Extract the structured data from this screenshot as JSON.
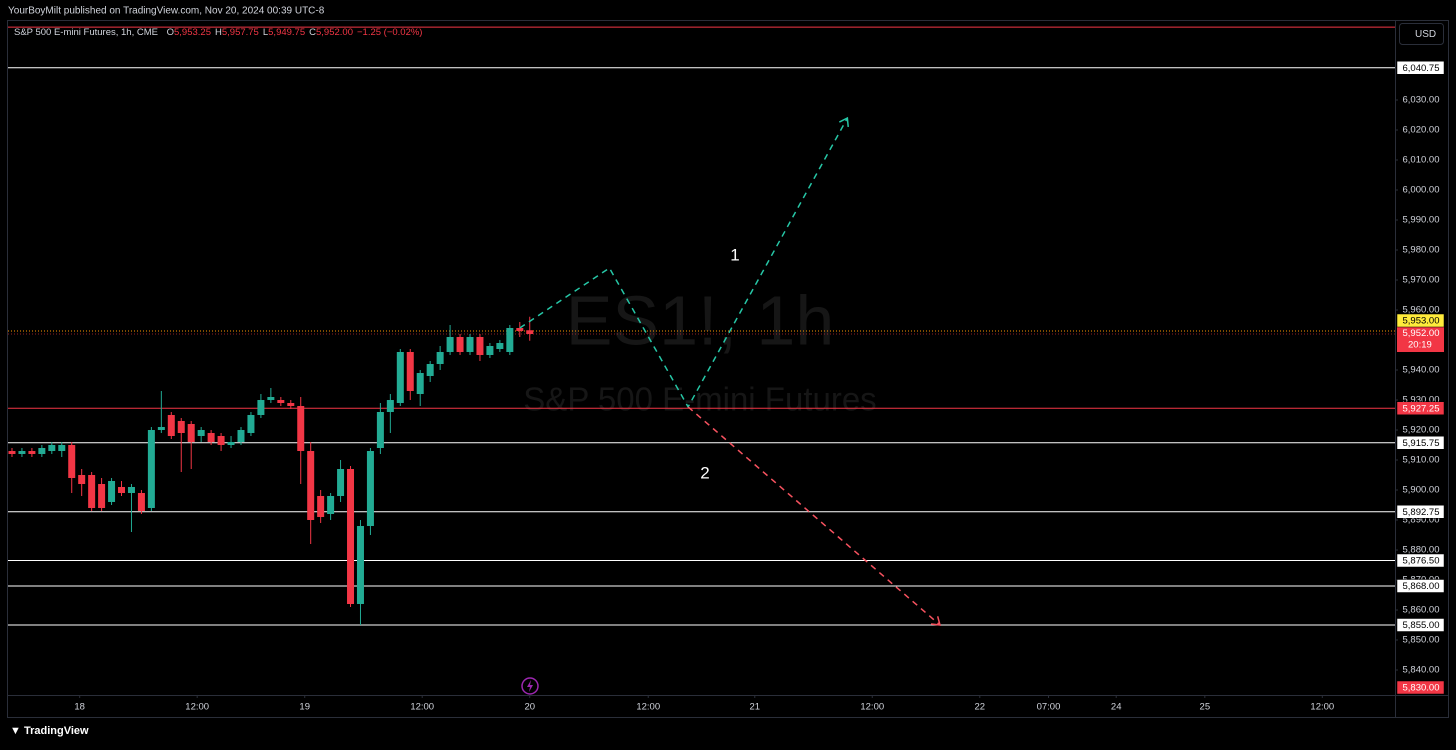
{
  "chart_data": {
    "type": "candlestick",
    "publisher_line": "YourBoyMilt published on TradingView.com, Nov 20, 2024 00:39 UTC-8",
    "symbol": "S&P 500 E-mini Futures, 1h, CME",
    "ohlc_header": [
      {
        "key": "O",
        "value": "5,953.25"
      },
      {
        "key": "H",
        "value": "5,957.75"
      },
      {
        "key": "L",
        "value": "5,949.75"
      },
      {
        "key": "C",
        "value": "5,952.00"
      }
    ],
    "change": "−1.25 (−0.02%)",
    "watermark": "ES1!, 1h",
    "watermark_subtitle": "S&P 500 E-mini Futures",
    "currency": "USD",
    "footer": "TradingView",
    "up_color": "#22ab94",
    "down_color": "#f23645",
    "open": [
      5913,
      5912,
      5913,
      5912,
      5913,
      5913,
      5915,
      5905,
      5905,
      5902,
      5896,
      5901,
      5899,
      5899,
      5894,
      5920,
      5925,
      5923,
      5922,
      5918,
      5919,
      5918,
      5915,
      5916,
      5919,
      5925,
      5930,
      5930,
      5929,
      5928,
      5913,
      5898,
      5892,
      5898,
      5907,
      5862,
      5888,
      5914,
      5926,
      5929,
      5946,
      5932,
      5938,
      5942,
      5946,
      5951,
      5946,
      5951,
      5945,
      5947,
      5946,
      5954,
      5953.25
    ],
    "high": [
      5914,
      5914,
      5914,
      5915,
      5916,
      5916,
      5916,
      5907,
      5906,
      5904,
      5904,
      5903,
      5902,
      5900,
      5921,
      5933,
      5926,
      5924,
      5923,
      5921,
      5920,
      5919,
      5918,
      5921,
      5926,
      5932,
      5934,
      5931,
      5930,
      5931,
      5916,
      5900,
      5899,
      5910,
      5908,
      5890,
      5914,
      5929,
      5932,
      5947,
      5947,
      5940,
      5943,
      5948,
      5955,
      5952,
      5952,
      5952,
      5949,
      5950,
      5955,
      5956,
      5957.75
    ],
    "low": [
      5911,
      5911,
      5911,
      5911,
      5912,
      5911,
      5899,
      5898,
      5893,
      5893,
      5895,
      5898,
      5886,
      5892,
      5893,
      5919,
      5917,
      5906,
      5907,
      5916,
      5915,
      5913,
      5914,
      5915,
      5918,
      5924,
      5929,
      5928,
      5927,
      5902,
      5882,
      5889,
      5890,
      5896,
      5861,
      5855,
      5885,
      5912,
      5919,
      5928,
      5930,
      5928,
      5936,
      5940,
      5945,
      5945,
      5945,
      5943,
      5944,
      5946,
      5945,
      5951,
      5949.75
    ],
    "close": [
      5912,
      5913,
      5912,
      5914,
      5915,
      5915,
      5904,
      5902,
      5894,
      5894,
      5903,
      5899,
      5901,
      5893,
      5920,
      5921,
      5918,
      5919,
      5916,
      5920,
      5916,
      5915,
      5916,
      5920,
      5925,
      5930,
      5931,
      5929,
      5928,
      5913,
      5890,
      5891,
      5898,
      5907,
      5862,
      5888,
      5913,
      5926,
      5930,
      5946,
      5933,
      5939,
      5942,
      5946,
      5951,
      5946,
      5951,
      5945,
      5948,
      5949,
      5954,
      5953,
      5952
    ],
    "xlim": [
      -0.4,
      138.9
    ],
    "xticks": [
      {
        "value": 6.8,
        "label": "18"
      },
      {
        "value": 18.6,
        "label": "12:00"
      },
      {
        "value": 29.4,
        "label": "19"
      },
      {
        "value": 41.2,
        "label": "12:00"
      },
      {
        "value": 52.0,
        "label": "20"
      },
      {
        "value": 63.9,
        "label": "12:00"
      },
      {
        "value": 74.6,
        "label": "21"
      },
      {
        "value": 86.4,
        "label": "12:00"
      },
      {
        "value": 97.2,
        "label": "22"
      },
      {
        "value": 104.1,
        "label": "07:00"
      },
      {
        "value": 110.9,
        "label": "24"
      },
      {
        "value": 119.8,
        "label": "25"
      },
      {
        "value": 131.6,
        "label": "12:00"
      }
    ],
    "ylim": [
      5832,
      6056
    ],
    "yticks": [
      {
        "value": 6030,
        "label": "6,030.00"
      },
      {
        "value": 6020,
        "label": "6,020.00"
      },
      {
        "value": 6010,
        "label": "6,010.00"
      },
      {
        "value": 6000,
        "label": "6,000.00"
      },
      {
        "value": 5990,
        "label": "5,990.00"
      },
      {
        "value": 5980,
        "label": "5,980.00"
      },
      {
        "value": 5970,
        "label": "5,970.00"
      },
      {
        "value": 5960,
        "label": "5,960.00"
      },
      {
        "value": 5940,
        "label": "5,940.00"
      },
      {
        "value": 5930,
        "label": "5,930.00"
      },
      {
        "value": 5920,
        "label": "5,920.00"
      },
      {
        "value": 5910,
        "label": "5,910.00"
      },
      {
        "value": 5900,
        "label": "5,900.00"
      },
      {
        "value": 5890,
        "label": "5,890.00"
      },
      {
        "value": 5880,
        "label": "5,880.00"
      },
      {
        "value": 5870,
        "label": "5,870.00"
      },
      {
        "value": 5860,
        "label": "5,860.00"
      },
      {
        "value": 5850,
        "label": "5,850.00"
      },
      {
        "value": 5840,
        "label": "5,840.00"
      }
    ],
    "grid": false,
    "last_price": {
      "value": 5952,
      "label": "5,952.00",
      "countdown": "20:19",
      "color": "#f23645"
    },
    "levels": [
      {
        "value": 6054.3,
        "color": "#f23645"
      },
      {
        "value": 6040.75,
        "label": "6,040.75",
        "color": "#ffffff",
        "label_background": "#ffffff",
        "label_color": "#000000"
      },
      {
        "value": 5953,
        "label": "5,953.00",
        "color": "#ff9800",
        "style": "dotted",
        "label_background": "#ffeb3b",
        "label_color": "#000000"
      },
      {
        "value": 5927.25,
        "label": "5,927.25",
        "color": "#f23645",
        "label_background": "#f23645",
        "label_color": "#ffffff"
      },
      {
        "value": 5915.75,
        "label": "5,915.75",
        "color": "#ffffff",
        "label_background": "#ffffff",
        "label_color": "#000000"
      },
      {
        "value": 5892.75,
        "label": "5,892.75",
        "color": "#ffffff",
        "label_background": "#ffffff",
        "label_color": "#000000"
      },
      {
        "value": 5876.5,
        "label": "5,876.50",
        "color": "#ffffff",
        "label_background": "#ffffff",
        "label_color": "#000000"
      },
      {
        "value": 5868,
        "label": "5,868.00",
        "color": "#ffffff",
        "label_background": "#ffffff",
        "label_color": "#000000"
      },
      {
        "value": 5855,
        "label": "5,855.00",
        "color": "#ffffff",
        "label_background": "#ffffff",
        "label_color": "#000000"
      },
      {
        "value": 5830,
        "label": "5,830.00",
        "color": "#f23645",
        "label_background": "#f23645",
        "label_color": "#ffffff"
      }
    ],
    "drawings": [
      {
        "color": "#26c6a6",
        "points": [
          {
            "x": 51.0,
            "y": 5954
          },
          {
            "x": 60.0,
            "y": 5974
          },
          {
            "x": 67.9,
            "y": 5927.7
          },
          {
            "x": 83.9,
            "y": 6024
          }
        ]
      },
      {
        "color": "#f7525f",
        "points": [
          {
            "x": 67.9,
            "y": 5927.7
          },
          {
            "x": 93.2,
            "y": 5855
          }
        ]
      }
    ],
    "annotations": [
      {
        "text": "1"
      },
      {
        "text": "2"
      }
    ]
  }
}
